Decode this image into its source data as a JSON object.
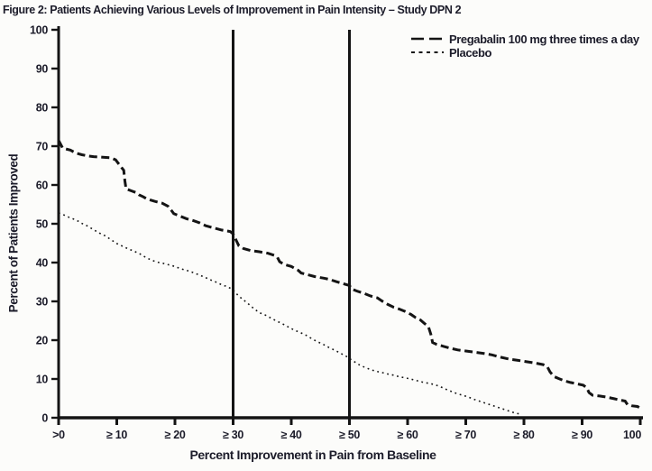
{
  "title": "Figure 2: Patients Achieving Various Levels of Improvement in Pain Intensity – Study DPN 2",
  "chart_data": {
    "type": "line",
    "title": "Figure 2: Patients Achieving Various Levels of Improvement in Pain Intensity – Study DPN 2",
    "xlabel": "Percent Improvement in Pain from Baseline",
    "ylabel": "Percent of Patients Improved",
    "xlim": [
      0,
      100
    ],
    "ylim": [
      0,
      100
    ],
    "grid": false,
    "legend_position": "top-right",
    "ink_color": "#141414",
    "reference_lines_x": [
      30,
      50
    ],
    "x_ticks": [
      {
        "value": 0,
        "label": ">0"
      },
      {
        "value": 10,
        "label": "≥ 10"
      },
      {
        "value": 20,
        "label": "≥ 20"
      },
      {
        "value": 30,
        "label": "≥ 30"
      },
      {
        "value": 40,
        "label": "≥ 40"
      },
      {
        "value": 50,
        "label": "≥ 50"
      },
      {
        "value": 60,
        "label": "≥ 60"
      },
      {
        "value": 70,
        "label": "≥ 70"
      },
      {
        "value": 80,
        "label": "≥ 80"
      },
      {
        "value": 90,
        "label": "≥ 90"
      },
      {
        "value": 100,
        "label": "100"
      }
    ],
    "y_ticks": [
      {
        "value": 0,
        "label": "0"
      },
      {
        "value": 10,
        "label": "10"
      },
      {
        "value": 20,
        "label": "20"
      },
      {
        "value": 30,
        "label": "30"
      },
      {
        "value": 40,
        "label": "40"
      },
      {
        "value": 50,
        "label": "50"
      },
      {
        "value": 60,
        "label": "60"
      },
      {
        "value": 70,
        "label": "70"
      },
      {
        "value": 80,
        "label": "80"
      },
      {
        "value": 90,
        "label": "90"
      },
      {
        "value": 100,
        "label": "100"
      }
    ],
    "series": [
      {
        "name": "Pregabalin 100 mg three times a day",
        "line_style": "long-dash",
        "color": "#141414",
        "points": [
          [
            0,
            71.5
          ],
          [
            0.7,
            69.5
          ],
          [
            2,
            69
          ],
          [
            3,
            68.2
          ],
          [
            4,
            67.8
          ],
          [
            5,
            67.5
          ],
          [
            6,
            67.3
          ],
          [
            7,
            67.2
          ],
          [
            9,
            67
          ],
          [
            9.8,
            66.5
          ],
          [
            10.3,
            65.5
          ],
          [
            10.8,
            64.5
          ],
          [
            11.2,
            63.8
          ],
          [
            11.4,
            61
          ],
          [
            11.6,
            59
          ],
          [
            12.5,
            58.5
          ],
          [
            13.4,
            58
          ],
          [
            13.8,
            57.5
          ],
          [
            14.5,
            57
          ],
          [
            15.2,
            56.4
          ],
          [
            16.5,
            55.8
          ],
          [
            17.8,
            55.3
          ],
          [
            18.8,
            54.5
          ],
          [
            19.3,
            53.6
          ],
          [
            19.8,
            52.6
          ],
          [
            20.8,
            52
          ],
          [
            22,
            51.3
          ],
          [
            23.2,
            50.8
          ],
          [
            24.3,
            50.2
          ],
          [
            25.3,
            49.5
          ],
          [
            26.5,
            49
          ],
          [
            28,
            48.4
          ],
          [
            29.5,
            48
          ],
          [
            30,
            47.4
          ],
          [
            30.6,
            45.5
          ],
          [
            31,
            44.3
          ],
          [
            31.8,
            43.6
          ],
          [
            33,
            43.1
          ],
          [
            34.5,
            42.8
          ],
          [
            36,
            42.4
          ],
          [
            37.2,
            41.8
          ],
          [
            37.6,
            41.4
          ],
          [
            38,
            40.2
          ],
          [
            38.8,
            39.5
          ],
          [
            40,
            39
          ],
          [
            40.6,
            38.5
          ],
          [
            41.2,
            38
          ],
          [
            41.7,
            37.3
          ],
          [
            42.5,
            37
          ],
          [
            44,
            36.4
          ],
          [
            45.5,
            36
          ],
          [
            46.5,
            35.7
          ],
          [
            47.7,
            35.1
          ],
          [
            48.8,
            34.6
          ],
          [
            50,
            34.1
          ],
          [
            50.4,
            33.2
          ],
          [
            51.2,
            32.7
          ],
          [
            52.6,
            32
          ],
          [
            53.6,
            31.4
          ],
          [
            54.8,
            30.9
          ],
          [
            55.6,
            30.1
          ],
          [
            56.6,
            29.2
          ],
          [
            57.6,
            28.5
          ],
          [
            58.6,
            28
          ],
          [
            59.6,
            27.4
          ],
          [
            60.6,
            26.6
          ],
          [
            61.4,
            25.8
          ],
          [
            62.2,
            25.2
          ],
          [
            62.9,
            24.3
          ],
          [
            63.6,
            23.4
          ],
          [
            64,
            21.5
          ],
          [
            64.3,
            19.4
          ],
          [
            65,
            18.9
          ],
          [
            66.2,
            18.4
          ],
          [
            67.4,
            17.9
          ],
          [
            68.6,
            17.5
          ],
          [
            70,
            17.2
          ],
          [
            71.5,
            16.9
          ],
          [
            73,
            16.6
          ],
          [
            74.5,
            16.2
          ],
          [
            76,
            15.6
          ],
          [
            77.5,
            15.1
          ],
          [
            79,
            14.8
          ],
          [
            80.7,
            14.4
          ],
          [
            82,
            14.1
          ],
          [
            83.3,
            13.7
          ],
          [
            84,
            13.2
          ],
          [
            84.5,
            11.8
          ],
          [
            85.2,
            10.6
          ],
          [
            86,
            10.1
          ],
          [
            87,
            9.5
          ],
          [
            88,
            9.1
          ],
          [
            89,
            8.8
          ],
          [
            90.2,
            8.4
          ],
          [
            90.8,
            7.7
          ],
          [
            91.2,
            6.5
          ],
          [
            91.8,
            5.8
          ],
          [
            93,
            5.6
          ],
          [
            94.3,
            5.3
          ],
          [
            95.5,
            4.9
          ],
          [
            96.7,
            4.5
          ],
          [
            97.4,
            4.3
          ],
          [
            97.8,
            3.4
          ],
          [
            98.5,
            3.1
          ],
          [
            99.5,
            2.9
          ],
          [
            100,
            2.5
          ]
        ]
      },
      {
        "name": "Placebo",
        "line_style": "dotted",
        "color": "#141414",
        "points": [
          [
            0,
            52.8
          ],
          [
            1,
            52.2
          ],
          [
            2,
            51.5
          ],
          [
            3,
            51
          ],
          [
            4,
            50.1
          ],
          [
            5,
            49.4
          ],
          [
            6,
            48.5
          ],
          [
            7,
            47.6
          ],
          [
            8,
            46.9
          ],
          [
            9,
            45.9
          ],
          [
            10,
            44.9
          ],
          [
            11,
            44.2
          ],
          [
            12,
            43.5
          ],
          [
            13,
            42.9
          ],
          [
            14,
            42.2
          ],
          [
            15,
            41.3
          ],
          [
            16,
            40.6
          ],
          [
            17,
            40.1
          ],
          [
            18,
            39.8
          ],
          [
            19,
            39.4
          ],
          [
            20,
            39
          ],
          [
            21,
            38.4
          ],
          [
            22,
            38
          ],
          [
            23,
            37.5
          ],
          [
            24,
            36.9
          ],
          [
            25,
            36.3
          ],
          [
            26,
            35.6
          ],
          [
            27,
            35
          ],
          [
            28,
            34.3
          ],
          [
            29,
            33.8
          ],
          [
            30,
            33
          ],
          [
            30.8,
            31.6
          ],
          [
            31.5,
            30.7
          ],
          [
            32.5,
            29.5
          ],
          [
            33.5,
            28.2
          ],
          [
            34.5,
            27.1
          ],
          [
            35.5,
            26.5
          ],
          [
            36.5,
            25.7
          ],
          [
            37.5,
            24.9
          ],
          [
            38.5,
            24.2
          ],
          [
            39.5,
            23.4
          ],
          [
            40.5,
            22.6
          ],
          [
            41.5,
            22
          ],
          [
            42.5,
            21.3
          ],
          [
            43.5,
            20.4
          ],
          [
            44.5,
            19.6
          ],
          [
            45.5,
            18.9
          ],
          [
            46.5,
            18.1
          ],
          [
            47.5,
            17.4
          ],
          [
            48.5,
            16.6
          ],
          [
            49.5,
            15.8
          ],
          [
            50.5,
            14.8
          ],
          [
            51.5,
            13.8
          ],
          [
            52.5,
            13.1
          ],
          [
            53.5,
            12.5
          ],
          [
            54.5,
            12
          ],
          [
            55.5,
            11.7
          ],
          [
            56.5,
            11.3
          ],
          [
            57.5,
            11
          ],
          [
            58.5,
            10.6
          ],
          [
            59.5,
            10.3
          ],
          [
            60.5,
            10
          ],
          [
            61.5,
            9.6
          ],
          [
            62.5,
            9.2
          ],
          [
            63.5,
            8.9
          ],
          [
            64.5,
            8.6
          ],
          [
            65.5,
            8.1
          ],
          [
            66.5,
            7.4
          ],
          [
            67.5,
            6.8
          ],
          [
            68.5,
            6.2
          ],
          [
            69.5,
            5.8
          ],
          [
            70.5,
            5.3
          ],
          [
            71.5,
            4.7
          ],
          [
            72.5,
            4.2
          ],
          [
            73.5,
            3.7
          ],
          [
            74.5,
            3.2
          ],
          [
            75.5,
            2.7
          ],
          [
            76.5,
            2.2
          ],
          [
            77.5,
            1.7
          ],
          [
            78.5,
            1.2
          ],
          [
            79.5,
            0.9
          ]
        ]
      }
    ]
  }
}
